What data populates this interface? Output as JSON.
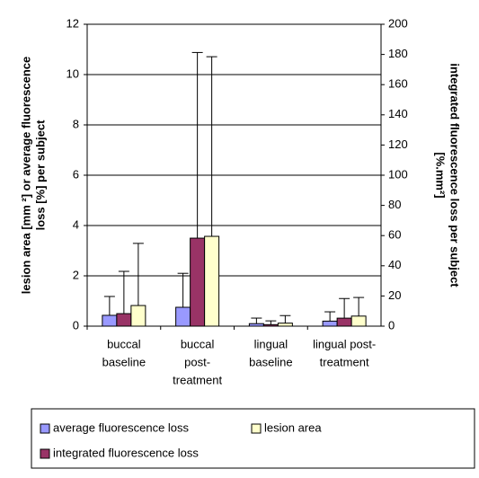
{
  "chart_data": {
    "type": "bar",
    "categories": [
      [
        "buccal",
        "baseline"
      ],
      [
        "buccal",
        "post-",
        "treatment"
      ],
      [
        "lingual",
        "baseline"
      ],
      [
        "lingual post-",
        "treatment"
      ]
    ],
    "y_label": [
      "lesion area [mm ²] or average fluorescence",
      "loss [%] per subject"
    ],
    "y2_label": [
      "integrated fluorescence loss per subject",
      "[%.mm²]"
    ],
    "ylim": [
      0,
      12
    ],
    "yticks": [
      0,
      2,
      4,
      6,
      8,
      10,
      12
    ],
    "y2lim": [
      0,
      200
    ],
    "y2ticks": [
      0,
      20,
      40,
      60,
      80,
      100,
      120,
      140,
      160,
      180,
      200
    ],
    "grid": true,
    "series": [
      {
        "name": "average fluorescence loss",
        "color": "#9999ff",
        "values": [
          0.43,
          0.75,
          0.1,
          0.2
        ],
        "errors": [
          0.75,
          1.35,
          0.22,
          0.37
        ]
      },
      {
        "name": "integrated fluorescence loss",
        "color": "#993366",
        "axis": "y2",
        "values": [
          8.3,
          58.3,
          1,
          5.3
        ],
        "errors": [
          28,
          123,
          2.5,
          13
        ]
      },
      {
        "name": "lesion area",
        "color": "#ffffcc",
        "values": [
          0.82,
          3.57,
          0.12,
          0.4
        ],
        "errors": [
          2.47,
          7.14,
          0.3,
          0.74
        ]
      }
    ]
  }
}
